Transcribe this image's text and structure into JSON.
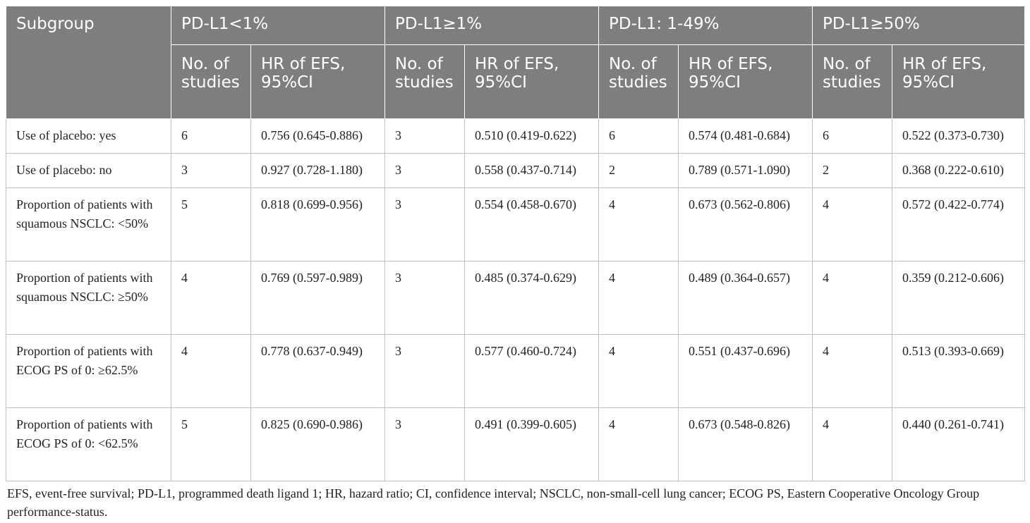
{
  "table": {
    "header_row1": {
      "subgroup": "Subgroup",
      "groups": [
        "PD-L1<1%",
        "PD-L1≥1%",
        "PD-L1: 1-49%",
        "PD-L1≥50%"
      ]
    },
    "header_row2": {
      "no_of_studies": "No. of studies",
      "hr": "HR of EFS, 95%CI"
    },
    "rows": [
      {
        "subgroup": "Use of placebo: yes",
        "cells": [
          "6",
          "0.756 (0.645-0.886)",
          "3",
          "0.510 (0.419-0.622)",
          "6",
          "0.574 (0.481-0.684)",
          "6",
          "0.522 (0.373-0.730)"
        ]
      },
      {
        "subgroup": "Use of placebo: no",
        "cells": [
          "3",
          "0.927 (0.728-1.180)",
          "3",
          "0.558 (0.437-0.714)",
          "2",
          "0.789 (0.571-1.090)",
          "2",
          "0.368 (0.222-0.610)"
        ]
      },
      {
        "subgroup": "Proportion of patients with squamous NSCLC: <50%",
        "cells": [
          "5",
          "0.818 (0.699-0.956)",
          "3",
          "0.554 (0.458-0.670)",
          "4",
          "0.673 (0.562-0.806)",
          "4",
          "0.572 (0.422-0.774)"
        ]
      },
      {
        "subgroup": "Proportion of patients with squamous NSCLC: ≥50%",
        "cells": [
          "4",
          "0.769 (0.597-0.989)",
          "3",
          "0.485 (0.374-0.629)",
          "4",
          "0.489 (0.364-0.657)",
          "4",
          "0.359 (0.212-0.606)"
        ]
      },
      {
        "subgroup": "Proportion of patients with ECOG PS of 0: ≥62.5%",
        "cells": [
          "4",
          "0.778 (0.637-0.949)",
          "3",
          "0.577 (0.460-0.724)",
          "4",
          "0.551 (0.437-0.696)",
          "4",
          "0.513 (0.393-0.669)"
        ]
      },
      {
        "subgroup": "Proportion of patients with ECOG PS of 0: <62.5%",
        "cells": [
          "5",
          "0.825 (0.690-0.986)",
          "3",
          "0.491 (0.399-0.605)",
          "4",
          "0.673 (0.548-0.826)",
          "4",
          "0.440 (0.261-0.741)"
        ]
      }
    ]
  },
  "footnote": "EFS, event-free survival; PD-L1, programmed death ligand 1; HR, hazard ratio; CI, confidence interval; NSCLC, non-small-cell lung cancer; ECOG PS, Eastern Cooperative Oncology Group performance-status.",
  "colors": {
    "header_bg": "#7d7e7d",
    "header_text": "#ffffff",
    "grid": "#bfbfbf"
  }
}
